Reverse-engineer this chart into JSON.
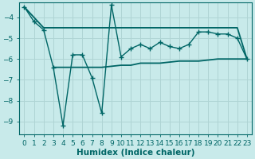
{
  "xlabel": "Humidex (Indice chaleur)",
  "background_color": "#c8eaea",
  "grid_color": "#afd4d4",
  "line_color": "#006666",
  "xlim": [
    -0.5,
    23.5
  ],
  "ylim": [
    -9.6,
    -3.3
  ],
  "yticks": [
    -9,
    -8,
    -7,
    -6,
    -5,
    -4
  ],
  "xticks": [
    0,
    1,
    2,
    3,
    4,
    5,
    6,
    7,
    8,
    9,
    10,
    11,
    12,
    13,
    14,
    15,
    16,
    17,
    18,
    19,
    20,
    21,
    22,
    23
  ],
  "series1_x": [
    0,
    1,
    2,
    3,
    4,
    5,
    6,
    7,
    8,
    9,
    10,
    11,
    12,
    13,
    14,
    15,
    16,
    17,
    18,
    19,
    20,
    21,
    22,
    23
  ],
  "series1_y": [
    -3.5,
    -4.2,
    -4.6,
    -6.4,
    -9.2,
    -5.8,
    -5.8,
    -6.9,
    -8.6,
    -3.4,
    -5.9,
    -5.5,
    -5.3,
    -5.5,
    -5.2,
    -5.4,
    -5.5,
    -5.3,
    -4.7,
    -4.7,
    -4.8,
    -4.8,
    -5.0,
    -6.0
  ],
  "series2_x": [
    0,
    2,
    8,
    9,
    12,
    15,
    18,
    20,
    21,
    22,
    23
  ],
  "series2_y": [
    -3.5,
    -4.5,
    -4.5,
    -4.5,
    -4.5,
    -4.5,
    -4.5,
    -4.5,
    -4.5,
    -4.5,
    -6.0
  ],
  "series3_x": [
    3,
    4,
    8,
    10,
    11,
    12,
    14,
    16,
    18,
    20,
    22,
    23
  ],
  "series3_y": [
    -6.4,
    -6.4,
    -6.4,
    -6.3,
    -6.3,
    -6.2,
    -6.2,
    -6.1,
    -6.1,
    -6.0,
    -6.0,
    -6.0
  ],
  "tick_fontsize": 6.5,
  "label_fontsize": 7.5
}
